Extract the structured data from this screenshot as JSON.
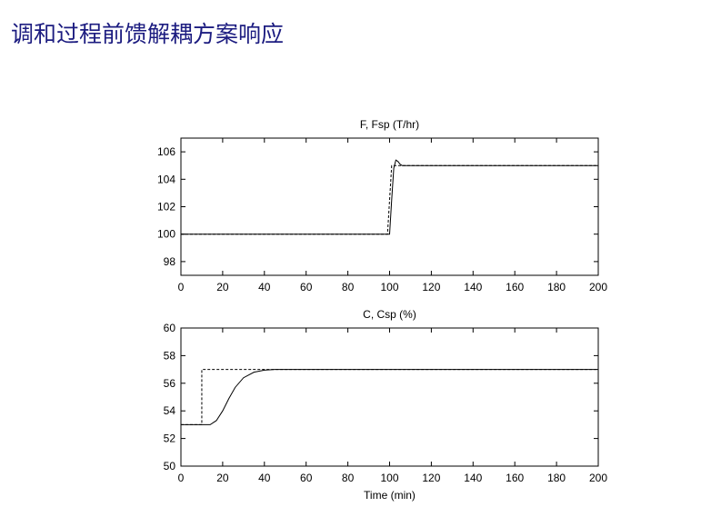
{
  "header": {
    "title": "调和过程前馈解耦方案响应"
  },
  "chart_data": [
    {
      "type": "line",
      "title": "F, Fsp (T/hr)",
      "xlim": [
        0,
        200
      ],
      "xticks": [
        0,
        20,
        40,
        60,
        80,
        100,
        120,
        140,
        160,
        180,
        200
      ],
      "ylim": [
        97,
        107
      ],
      "yticks": [
        98,
        100,
        102,
        104,
        106
      ],
      "series": [
        {
          "color": "#000000",
          "dashed": false,
          "x": [
            0,
            100,
            101,
            102,
            103,
            104,
            105,
            106,
            200
          ],
          "values": [
            100,
            100,
            102.5,
            104.8,
            105.4,
            105.3,
            105.1,
            105,
            105
          ]
        },
        {
          "color": "#000000",
          "dashed": true,
          "x": [
            0,
            99,
            101,
            200
          ],
          "values": [
            100,
            100,
            105,
            105
          ]
        }
      ]
    },
    {
      "type": "line",
      "title": "C, Csp (%)",
      "xlabel": "Time (min)",
      "xlim": [
        0,
        200
      ],
      "xticks": [
        0,
        20,
        40,
        60,
        80,
        100,
        120,
        140,
        160,
        180,
        200
      ],
      "ylim": [
        50,
        60
      ],
      "yticks": [
        50,
        52,
        54,
        56,
        58,
        60
      ],
      "series": [
        {
          "color": "#000000",
          "dashed": false,
          "x": [
            0,
            14,
            17,
            20,
            23,
            26,
            30,
            35,
            40,
            45,
            50,
            60,
            200
          ],
          "values": [
            53,
            53,
            53.3,
            54,
            54.9,
            55.7,
            56.4,
            56.8,
            56.95,
            57,
            57,
            57,
            57
          ]
        },
        {
          "color": "#000000",
          "dashed": true,
          "x": [
            0,
            10,
            10,
            200
          ],
          "values": [
            53,
            53,
            57,
            57
          ]
        }
      ]
    }
  ]
}
